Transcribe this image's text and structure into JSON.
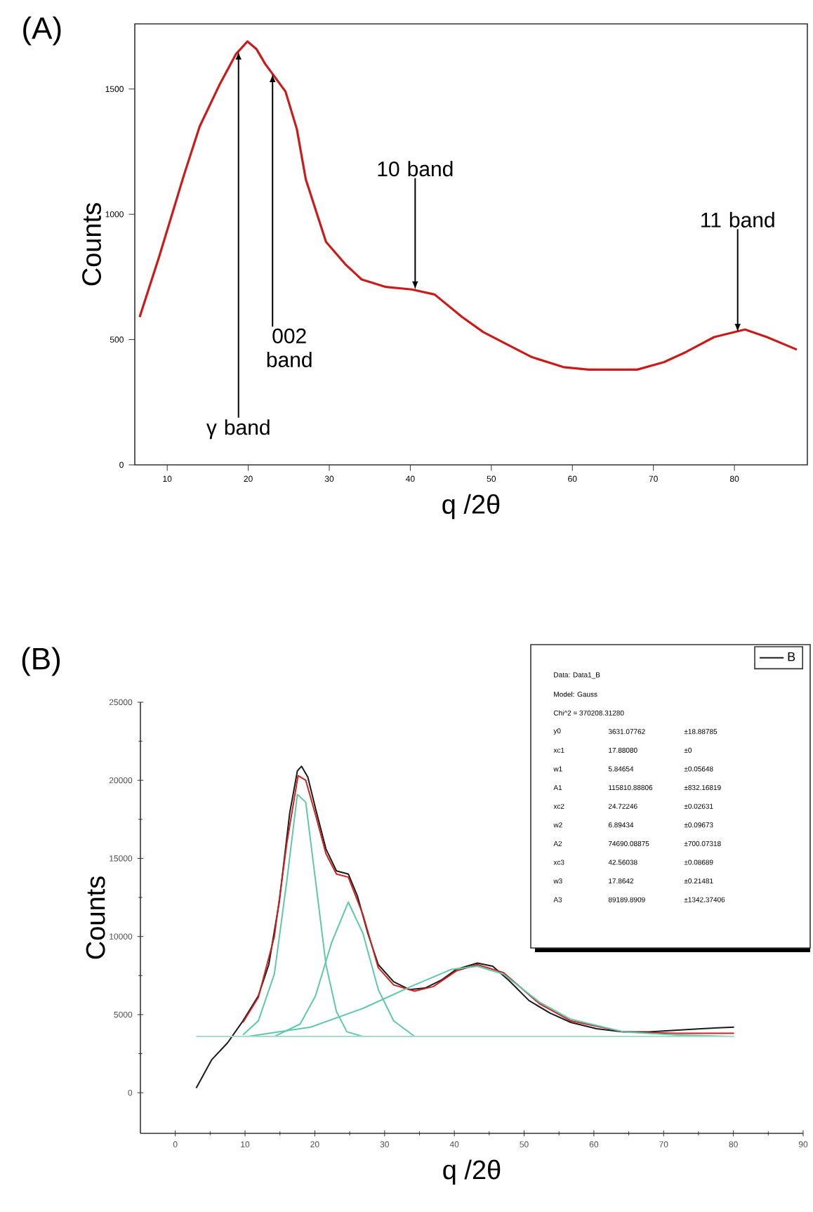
{
  "chart_data": [
    {
      "type": "line",
      "title": "(A)",
      "xlabel": "q /2θ",
      "ylabel": "Counts",
      "xlim": [
        6,
        89
      ],
      "ylim": [
        0,
        1760
      ],
      "xticks": [
        10,
        20,
        30,
        40,
        50,
        60,
        70,
        80
      ],
      "yticks": [
        0,
        500,
        1000,
        1500
      ],
      "grid": false,
      "marker": "none",
      "line_style": "solid",
      "series": [
        {
          "color": "#cc1a1a",
          "x": [
            6.6,
            9,
            12.1,
            14,
            16.5,
            18.5,
            19.9,
            21,
            22.1,
            24.6,
            26,
            27.1,
            28.5,
            29.6,
            32,
            34.0,
            37,
            40.2,
            43,
            46.4,
            49,
            52.6,
            55,
            58.9,
            62,
            65.0,
            68,
            71.3,
            74,
            77.5,
            81.3,
            84,
            87.7
          ],
          "values": [
            590,
            830,
            1160,
            1350,
            1520,
            1640,
            1690,
            1660,
            1600,
            1490,
            1340,
            1140,
            1000,
            890,
            800,
            740,
            710,
            700,
            680,
            590,
            530,
            470,
            430,
            390,
            380,
            380,
            380,
            410,
            450,
            510,
            540,
            510,
            460
          ]
        }
      ],
      "annotations": [
        {
          "text": "γ band",
          "x": 18.8,
          "y": 1650
        },
        {
          "text": "002 band",
          "x": 23,
          "y": 1560
        },
        {
          "text": "10 band",
          "x": 40.6,
          "y": 700
        },
        {
          "text": "11 band",
          "x": 80.4,
          "y": 530
        }
      ]
    },
    {
      "type": "line",
      "title": "(B)",
      "xlabel": "q /2θ",
      "ylabel": "Counts",
      "xlim": [
        -5,
        90
      ],
      "ylim": [
        -2600,
        25000
      ],
      "xticks": [
        0,
        10,
        20,
        30,
        40,
        50,
        60,
        70,
        80,
        90
      ],
      "yticks": [
        0,
        5000,
        10000,
        15000,
        20000,
        25000
      ],
      "grid": false,
      "marker": "none",
      "line_style": "solid",
      "legend": "top right",
      "series": [
        {
          "name": "B",
          "color": "#1a1a1a",
          "x": [
            3.0,
            5.2,
            7.5,
            9.7,
            11.9,
            13.4,
            14.9,
            16.4,
            17.5,
            18.1,
            19.0,
            20.1,
            21.6,
            23.1,
            24.8,
            26.1,
            27.6,
            29.1,
            31.3,
            33.6,
            35.8,
            38.1,
            40.3,
            43.3,
            45.5,
            47.8,
            50.7,
            53.7,
            56.7,
            60.4,
            64.2,
            67.9,
            71.6,
            75.4,
            80.1
          ],
          "values": [
            300,
            2100,
            3200,
            4600,
            6200,
            8200,
            12200,
            17900,
            20600,
            20900,
            20200,
            18200,
            15600,
            14200,
            14000,
            12600,
            10200,
            8200,
            7100,
            6600,
            6700,
            7200,
            7900,
            8300,
            8100,
            7200,
            5900,
            5100,
            4500,
            4100,
            3900,
            3900,
            4000,
            4100,
            4200
          ]
        },
        {
          "color": "#cc2222",
          "x": [
            9.7,
            11.9,
            14.2,
            16.0,
            17.6,
            18.7,
            20.1,
            21.6,
            23.1,
            24.8,
            26.9,
            29.1,
            31.3,
            34.3,
            37.0,
            40.3,
            43.3,
            47.0,
            52.2,
            56.7,
            64.2,
            71.6,
            80.1
          ],
          "values": [
            4500,
            6100,
            10000,
            16000,
            20300,
            20000,
            17800,
            15300,
            14000,
            13800,
            11400,
            8000,
            6900,
            6500,
            6800,
            7800,
            8200,
            7700,
            5700,
            4600,
            3900,
            3800,
            3800
          ]
        },
        {
          "color": "#5fc8a8",
          "x": [
            9.7,
            11.9,
            14.2,
            16.0,
            17.5,
            18.7,
            20.1,
            21.6,
            23.1,
            24.6,
            26.9
          ],
          "values": [
            3700,
            4600,
            7600,
            13600,
            19100,
            18600,
            13600,
            8200,
            5200,
            3900,
            3600
          ]
        },
        {
          "color": "#5fc8a8",
          "x": [
            14.2,
            17.9,
            20.1,
            22.4,
            24.8,
            26.9,
            29.1,
            31.3,
            34.3
          ],
          "values": [
            3600,
            4400,
            6200,
            9600,
            12200,
            10200,
            6600,
            4600,
            3600
          ]
        },
        {
          "color": "#5fc8a8",
          "x": [
            10.4,
            19.4,
            26.9,
            34.3,
            39.6,
            43.3,
            47.0,
            52.2,
            56.7,
            64.2,
            71.6,
            80.1
          ],
          "values": [
            3600,
            4200,
            5400,
            6900,
            7900,
            8100,
            7600,
            5800,
            4700,
            3900,
            3700,
            3600
          ]
        },
        {
          "color": "#a8dcc8",
          "x": [
            3.0,
            80.1
          ],
          "values": [
            3600,
            3600
          ]
        }
      ],
      "annotations": [
        "Data: Data1_B",
        "Model: Gauss",
        "Chi^2 = 370208.31280",
        "y0",
        "3631.07762",
        "±18.88785",
        "xc1",
        "17.88080",
        "±0",
        "w1",
        "5.84654",
        "±0.05648",
        "A1",
        "115810.88806",
        "±832.16819",
        "xc2",
        "24.72246",
        "±0.02631",
        "w2",
        "6.89434",
        "±0.09673",
        "A2",
        "74690.08875",
        "±700.07318",
        "xc3",
        "42.56038",
        "±0.08689",
        "w3",
        "17.8642",
        "±0.21481",
        "A3",
        "89189.8909",
        "±1342.37406"
      ]
    }
  ]
}
